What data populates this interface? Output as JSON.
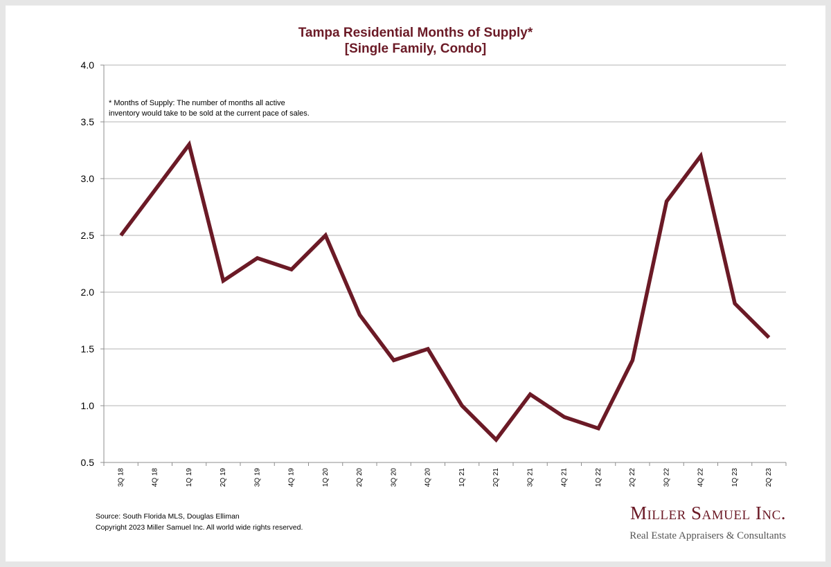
{
  "chart_data": {
    "type": "line",
    "title": "Tampa Residential Months of Supply*",
    "subtitle": "[Single Family, Condo]",
    "categories": [
      "3Q 18",
      "4Q 18",
      "1Q 19",
      "2Q 19",
      "3Q 19",
      "4Q 19",
      "1Q 20",
      "2Q 20",
      "3Q 20",
      "4Q 20",
      "1Q 21",
      "2Q 21",
      "3Q 21",
      "4Q 21",
      "1Q 22",
      "2Q 22",
      "3Q 22",
      "4Q 22",
      "1Q 23",
      "2Q 23"
    ],
    "series": [
      {
        "values": [
          2.5,
          2.9,
          3.3,
          2.1,
          2.3,
          2.2,
          2.5,
          1.8,
          1.4,
          1.5,
          1.0,
          0.7,
          1.1,
          0.9,
          0.8,
          1.4,
          2.8,
          3.2,
          1.9,
          1.6
        ]
      }
    ],
    "ylim": [
      0.5,
      4.0
    ],
    "yticks": [
      0.5,
      1.0,
      1.5,
      2.0,
      2.5,
      3.0,
      3.5,
      4.0
    ],
    "ytick_labels": [
      "0.5",
      "1.0",
      "1.5",
      "2.0",
      "2.5",
      "3.0",
      "3.5",
      "4.0"
    ],
    "xlabel": "",
    "ylabel": "",
    "grid": true,
    "legend": "none",
    "line_color": "#6b1a26",
    "annotation": [
      "* Months of Supply: The number of months all active",
      "inventory would take to be sold at the current pace of sales."
    ]
  },
  "footer": {
    "source": "Source: South Florida MLS, Douglas Elliman",
    "copyright": "Copyright 2023 Miller Samuel Inc.  All world wide rights reserved."
  },
  "logo": {
    "name": "Miller Samuel Inc.",
    "tagline": "Real Estate Appraisers & Consultants"
  }
}
